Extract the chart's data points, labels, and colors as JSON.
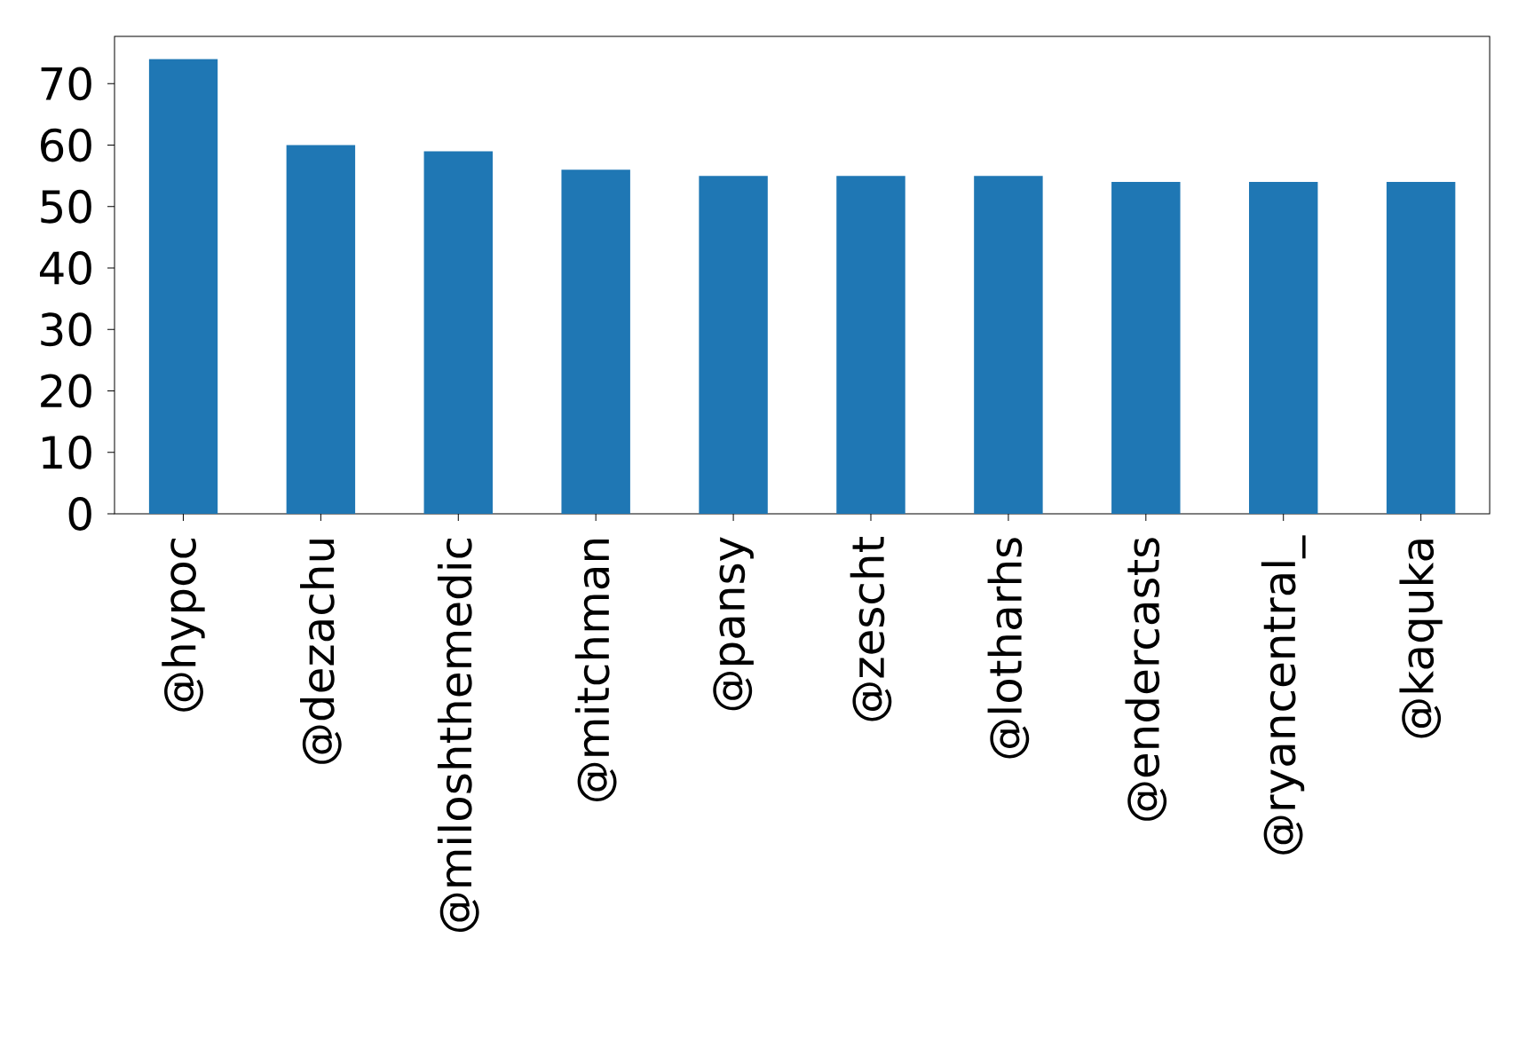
{
  "chart_data": {
    "type": "bar",
    "categories": [
      "@hypoc",
      "@dezachu",
      "@miloshthemedic",
      "@mitchman",
      "@pansy",
      "@zescht",
      "@lotharhs",
      "@endercasts",
      "@ryancentral_",
      "@kaquka"
    ],
    "values": [
      74,
      60,
      59,
      56,
      55,
      55,
      55,
      54,
      54,
      54
    ],
    "color": "#1f77b4",
    "ylim": [
      0,
      77.7
    ],
    "yticks": [
      0,
      10,
      20,
      30,
      40,
      50,
      60,
      70
    ]
  }
}
